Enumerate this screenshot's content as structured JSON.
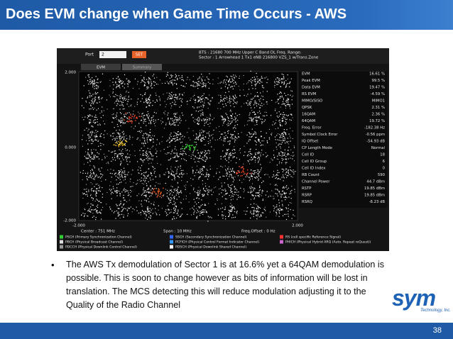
{
  "title": "Does EVM change when Game Time Occurs - AWS",
  "screenshot": {
    "port_label": "Port",
    "port_value": "2",
    "set_button": "SET",
    "header_lines": [
      "BTS : 21680   700 MHz Upper C Band DL      Freq. Range:",
      "Sector : 1      Arrowhead 1 Tx1 eNB 216800 VZS_1 w/Trans.Zone"
    ],
    "tabs": [
      "EVM",
      "Summary"
    ],
    "y_labels": [
      "2.000",
      "0.000",
      "-2.000"
    ],
    "x_labels": [
      "-2.000",
      "2.000"
    ],
    "footer": [
      "Center : 751 MHz",
      "Span : 10 MHz",
      "Freq.Offset : 0 Hz"
    ],
    "measurements": [
      {
        "label": "EVM",
        "value": "16.61 %"
      },
      {
        "label": "Peak EVM",
        "value": "99.5 %"
      },
      {
        "label": "Data EVM",
        "value": "19.47 %"
      },
      {
        "label": "RS EVM",
        "value": "-4.59 %"
      },
      {
        "label": "MIMO/SISO",
        "value": "MIMO1"
      },
      {
        "label": "QPSK",
        "value": "2.31 %"
      },
      {
        "label": "16QAM",
        "value": "2.36 %"
      },
      {
        "label": "64QAM",
        "value": "19.72 %"
      },
      {
        "label": "Freq. Error",
        "value": "-182.38 Hz"
      },
      {
        "label": "Symbol Clock Error",
        "value": "-0.56 ppm"
      },
      {
        "label": "IQ Offset",
        "value": "-54.93 dB"
      },
      {
        "label": "CP Length Mode",
        "value": "Normal"
      },
      {
        "label": "Cell ID",
        "value": "18"
      },
      {
        "label": "Cell ID Group",
        "value": "6"
      },
      {
        "label": "Cell ID Index",
        "value": "0"
      },
      {
        "label": "RB Count",
        "value": "590"
      },
      {
        "label": "Channel Power",
        "value": "44.7 dBm"
      },
      {
        "label": "RSTP",
        "value": "19.85 dBm"
      },
      {
        "label": "RSRP",
        "value": "19.85 dBm"
      },
      {
        "label": "RSRQ",
        "value": "-8.23 dB"
      }
    ],
    "legend": [
      {
        "name": "PSCH (Primary Synchronization Channel)",
        "color": "#33cc33"
      },
      {
        "name": "SSCH (Secondary Synchronization Channel)",
        "color": "#3366ff"
      },
      {
        "name": "RS (cell specific Reference Signal)",
        "color": "#ff3333"
      },
      {
        "name": "PBCH (Physical Broadcast Channel)",
        "color": "#dddddd"
      },
      {
        "name": "PCFICH (Physical Control Format Indicator Channel)",
        "color": "#3399ff"
      },
      {
        "name": "PHICH (Physical Hybrid ARQ (Auto. Repeat reQuest))",
        "color": "#cc66cc"
      },
      {
        "name": "PDCCH (Physical Downlink Control Channel)",
        "color": "#999999"
      },
      {
        "name": "PDSCH (Physical Downlink Shared Channel)",
        "color": "#ffffff"
      }
    ]
  },
  "bullet": "The AWS Tx demodulation of Sector 1 is at 16.6% yet a 64QAM demodulation is possible.  This is soon to change however as bits of information will be lost in translation.  The MCS detecting this will reduce modulation adjusting it to the Quality of the Radio Channel",
  "logo": {
    "name": "sym",
    "tagline": "Technology, Inc."
  },
  "page_number": "38"
}
